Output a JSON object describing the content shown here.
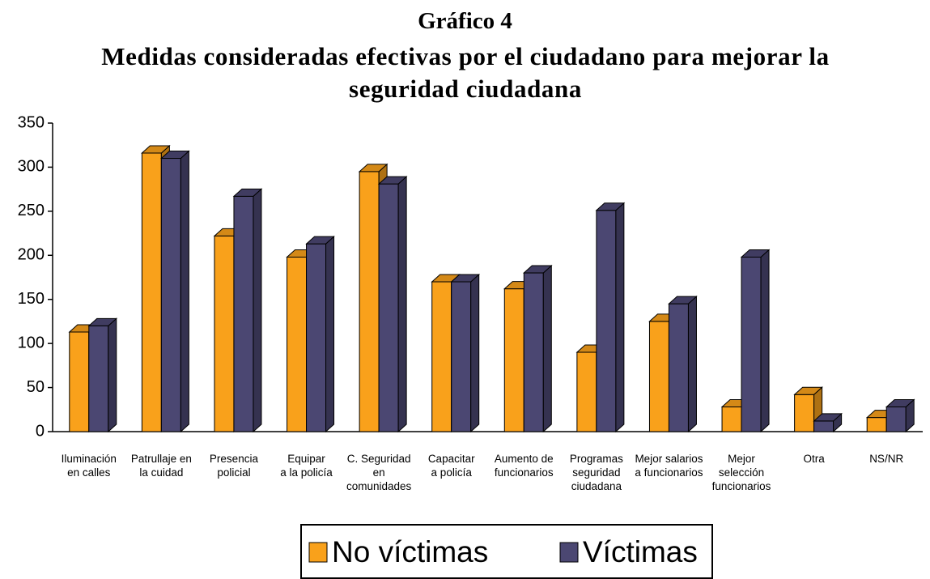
{
  "chart_data": {
    "type": "bar3d",
    "title": "Gráfico 4",
    "subtitle": "Medidas consideradas efectivas por el ciudadano para mejorar la seguridad ciudadana",
    "categories": [
      "Iluminación\nen calles",
      "Patrullaje en\nla cuidad",
      "Presencia\npolicial",
      "Equipar\na la policía",
      "C. Seguridad\nen\ncomunidades",
      "Capacitar\na policía",
      "Aumento de\nfuncionarios",
      "Programas\nseguridad\nciudadana",
      "Mejor salarios\na funcionarios",
      "Mejor\nselección\nfuncionarios",
      "Otra",
      "NS/NR"
    ],
    "series": [
      {
        "name": "No víctimas",
        "color": "#f9a11b",
        "values": [
          113,
          316,
          222,
          198,
          295,
          170,
          162,
          90,
          125,
          28,
          42,
          16
        ]
      },
      {
        "name": "Víctimas",
        "color": "#4b4772",
        "values": [
          120,
          310,
          267,
          213,
          281,
          170,
          180,
          251,
          145,
          198,
          12,
          28
        ]
      }
    ],
    "ylim": [
      0,
      350
    ],
    "yticks": [
      0,
      50,
      100,
      150,
      200,
      250,
      300,
      350
    ],
    "legend": "bottom"
  }
}
